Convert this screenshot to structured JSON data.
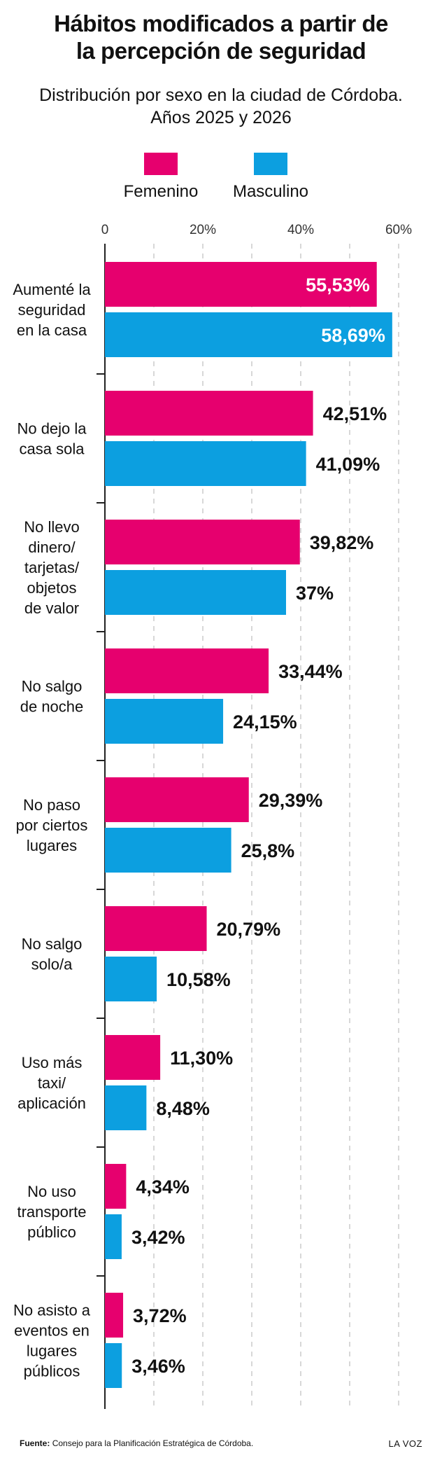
{
  "title_lines": [
    "Hábitos modificados a partir de",
    "la percepción de seguridad"
  ],
  "subtitle_lines": [
    "Distribución por sexo en la ciudad de Córdoba.",
    "Años 2025 y 2026"
  ],
  "colors": {
    "femenino": "#e6006e",
    "masculino": "#0c9fe0",
    "axis": "#222222",
    "grid": "#cccccc"
  },
  "chart_data": {
    "type": "bar",
    "orientation": "horizontal",
    "categories": [
      "Aumenté la seguridad en la casa",
      "No dejo la casa sola",
      "No llevo dinero/ tarjetas/ objetos de valor",
      "No salgo de noche",
      "No paso por ciertos lugares",
      "No salgo solo/a",
      "Uso más taxi/ aplicación",
      "No uso transporte público",
      "No asisto a eventos en lugares públicos"
    ],
    "category_lines": [
      [
        "Aumenté la",
        "seguridad",
        "en la casa"
      ],
      [
        "No dejo la",
        "casa sola"
      ],
      [
        "No llevo",
        "dinero/",
        "tarjetas/",
        "objetos",
        "de valor"
      ],
      [
        "No salgo",
        "de noche"
      ],
      [
        "No paso",
        "por ciertos",
        "lugares"
      ],
      [
        "No salgo",
        "solo/a"
      ],
      [
        "Uso más",
        "taxi/",
        "aplicación"
      ],
      [
        "No uso",
        "transporte",
        "público"
      ],
      [
        "No asisto a",
        "eventos en",
        "lugares",
        "públicos"
      ]
    ],
    "series": [
      {
        "name": "Femenino",
        "values": [
          55.53,
          42.51,
          39.82,
          33.44,
          29.39,
          20.79,
          11.3,
          4.34,
          3.72
        ],
        "labels": [
          "55,53%",
          "42,51%",
          "39,82%",
          "33,44%",
          "29,39%",
          "20,79%",
          "11,30%",
          "4,34%",
          "3,72%"
        ]
      },
      {
        "name": "Masculino",
        "values": [
          58.69,
          41.09,
          37,
          24.15,
          25.8,
          10.58,
          8.48,
          3.42,
          3.46
        ],
        "labels": [
          "58,69%",
          "41,09%",
          "37%",
          "24,15%",
          "25,8%",
          "10,58%",
          "8,48%",
          "3,42%",
          "3,46%"
        ]
      }
    ],
    "x_ticks": [
      "0",
      "20%",
      "40%",
      "60%"
    ],
    "xlim": [
      0,
      60
    ],
    "grid": true,
    "legend": "top"
  },
  "footer": {
    "source_label": "Fuente:",
    "source_text": "Consejo para la Planificación Estratégica de Córdoba.",
    "brand": "LA VOZ"
  }
}
